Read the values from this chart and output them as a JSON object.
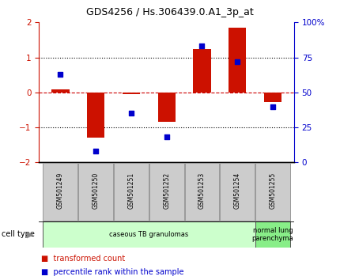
{
  "title": "GDS4256 / Hs.306439.0.A1_3p_at",
  "samples": [
    "GSM501249",
    "GSM501250",
    "GSM501251",
    "GSM501252",
    "GSM501253",
    "GSM501254",
    "GSM501255"
  ],
  "transformed_counts": [
    0.08,
    -1.3,
    -0.04,
    -0.85,
    1.25,
    1.85,
    -0.28
  ],
  "percentile_ranks": [
    63,
    8,
    35,
    18,
    83,
    72,
    40
  ],
  "ylim_left": [
    -2,
    2
  ],
  "ylim_right": [
    0,
    100
  ],
  "yticks_left": [
    -2,
    -1,
    0,
    1,
    2
  ],
  "yticks_right": [
    0,
    25,
    50,
    75,
    100
  ],
  "ytick_labels_right": [
    "0",
    "25",
    "50",
    "75",
    "100%"
  ],
  "hlines_dotted": [
    -1,
    1
  ],
  "bar_color": "#cc1100",
  "dot_color": "#0000cc",
  "zero_line_color": "#cc0000",
  "bar_width": 0.5,
  "cell_type_groups": [
    {
      "label": "caseous TB granulomas",
      "span": [
        0,
        5
      ],
      "color": "#ccffcc"
    },
    {
      "label": "normal lung\nparenchyma",
      "span": [
        6,
        6
      ],
      "color": "#88ee88"
    }
  ],
  "legend_items": [
    {
      "color": "#cc1100",
      "label": "transformed count"
    },
    {
      "color": "#0000cc",
      "label": "percentile rank within the sample"
    }
  ],
  "cell_type_label": "cell type",
  "bg_color": "#ffffff"
}
